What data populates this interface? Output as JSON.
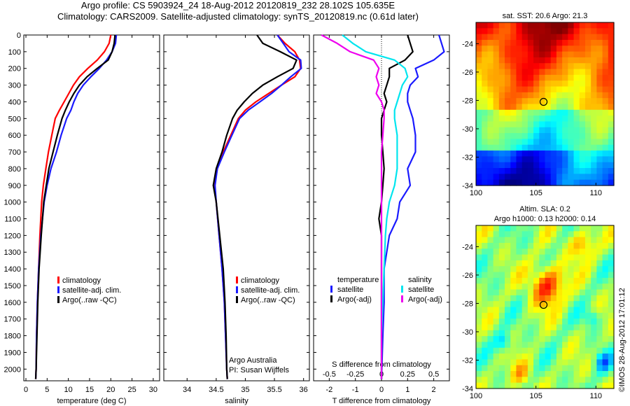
{
  "header": {
    "line1": "Argo profile: CS 5903924_24 18-Aug-2012 20120819_232 28.102S 105.635E",
    "line2": "Climatology: CARS2009. Satellite-adjusted climatology: synTS_20120819.nc (0.61d later)"
  },
  "credit": "©IMOS 28-Aug-2012 17:01:12",
  "colors": {
    "climatology": "#ff0000",
    "satellite": "#1a1aff",
    "argo": "#000000",
    "sal_satellite": "#00e5ee",
    "sal_argo": "#ee00ee"
  },
  "chart_data": [
    {
      "type": "line",
      "panel": "temperature",
      "xlabel": "temperature (deg C)",
      "ylabel": "",
      "xlim": [
        -0.5,
        31.5
      ],
      "ylim": [
        2070,
        0
      ],
      "xticks": [
        "0",
        "5",
        "10",
        "15",
        "20",
        "25",
        "30"
      ],
      "xtick_values": [
        0,
        5,
        10,
        15,
        20,
        25,
        30
      ],
      "yticks": [
        "0",
        "100",
        "200",
        "300",
        "400",
        "500",
        "600",
        "700",
        "800",
        "900",
        "1000",
        "1100",
        "1200",
        "1300",
        "1400",
        "1500",
        "1600",
        "1700",
        "1800",
        "1900",
        "2000"
      ],
      "legend": [
        "climatology",
        "satellite-adj. clim.",
        "Argo(..raw -QC)"
      ],
      "legend_position": "lower-middle",
      "series": [
        {
          "name": "climatology",
          "color_key": "climatology",
          "x": [
            20.0,
            19.6,
            18.5,
            16.8,
            14.6,
            12.6,
            11.2,
            10.1,
            9.0,
            7.9,
            6.9,
            6.1,
            5.3,
            4.7,
            4.1,
            3.7,
            3.3,
            3.0,
            2.7,
            2.5,
            2.4,
            2.3
          ],
          "y": [
            0,
            50,
            100,
            150,
            200,
            250,
            300,
            350,
            400,
            450,
            500,
            600,
            700,
            800,
            900,
            1000,
            1200,
            1400,
            1600,
            1800,
            2000,
            2060
          ]
        },
        {
          "name": "satellite-adj. clim.",
          "color_key": "satellite",
          "x": [
            21.3,
            21.1,
            20.3,
            19.0,
            17.3,
            15.3,
            13.5,
            12.2,
            11.3,
            10.6,
            9.6,
            8.3,
            7.2,
            5.9,
            5.0,
            4.3,
            3.5,
            3.0,
            2.7,
            2.5,
            2.4,
            2.3
          ],
          "y": [
            0,
            50,
            100,
            150,
            200,
            250,
            300,
            350,
            400,
            450,
            500,
            600,
            700,
            800,
            900,
            1000,
            1200,
            1400,
            1600,
            1800,
            2000,
            2060
          ]
        },
        {
          "name": "Argo(..raw -QC)",
          "color_key": "argo",
          "x": [
            21.0,
            20.8,
            20.3,
            19.4,
            16.8,
            14.4,
            12.6,
            11.3,
            10.2,
            9.3,
            8.5,
            7.4,
            6.4,
            5.4,
            4.8,
            4.2,
            3.6,
            3.1,
            2.8,
            2.6,
            2.4,
            2.3
          ],
          "y": [
            0,
            50,
            100,
            150,
            200,
            250,
            300,
            350,
            400,
            450,
            500,
            600,
            700,
            800,
            900,
            1000,
            1200,
            1400,
            1600,
            1800,
            2000,
            2060
          ]
        }
      ]
    },
    {
      "type": "line",
      "panel": "salinity",
      "xlabel": "salinity",
      "ylabel": "",
      "xlim": [
        33.6,
        36.1
      ],
      "ylim": [
        2070,
        0
      ],
      "xticks": [
        "34",
        "34.5",
        "35",
        "35.5",
        "36"
      ],
      "xtick_values": [
        34,
        34.5,
        35,
        35.5,
        36
      ],
      "legend": [
        "climatology",
        "satellite-adj. clim.",
        "Argo(..raw -QC)"
      ],
      "legend_position": "lower-middle",
      "annotations": [
        "Argo Australia",
        "PI: Susan Wijffels"
      ],
      "series": [
        {
          "name": "climatology",
          "color_key": "climatology",
          "x": [
            35.55,
            35.68,
            35.85,
            35.93,
            35.95,
            35.85,
            35.62,
            35.4,
            35.18,
            35.0,
            34.88,
            34.75,
            34.62,
            34.52,
            34.47,
            34.5,
            34.55,
            34.6,
            34.64,
            34.66,
            34.68,
            34.69
          ],
          "y": [
            0,
            50,
            100,
            150,
            200,
            250,
            300,
            350,
            400,
            450,
            500,
            600,
            700,
            800,
            900,
            1000,
            1200,
            1400,
            1600,
            1800,
            2000,
            2060
          ]
        },
        {
          "name": "satellite-adj. clim.",
          "color_key": "satellite",
          "x": [
            35.55,
            35.65,
            35.75,
            35.95,
            35.96,
            35.78,
            35.62,
            35.45,
            35.25,
            35.05,
            34.9,
            34.77,
            34.64,
            34.52,
            34.48,
            34.5,
            34.55,
            34.6,
            34.64,
            34.66,
            34.68,
            34.69
          ],
          "y": [
            0,
            50,
            100,
            150,
            200,
            250,
            300,
            350,
            400,
            450,
            500,
            600,
            700,
            800,
            900,
            1000,
            1200,
            1400,
            1600,
            1800,
            2000,
            2060
          ]
        },
        {
          "name": "Argo(..raw -QC)",
          "color_key": "argo",
          "x": [
            35.2,
            35.3,
            35.6,
            35.88,
            35.82,
            35.55,
            35.3,
            35.12,
            34.98,
            34.86,
            34.78,
            34.68,
            34.6,
            34.5,
            34.45,
            34.5,
            34.56,
            34.62,
            34.65,
            34.67,
            34.68,
            34.69
          ],
          "y": [
            0,
            50,
            100,
            150,
            200,
            250,
            300,
            350,
            400,
            450,
            500,
            600,
            700,
            800,
            900,
            1000,
            1200,
            1400,
            1600,
            1800,
            2000,
            2060
          ]
        }
      ]
    },
    {
      "type": "line",
      "panel": "difference",
      "xlabel": "T difference from climatology",
      "xlabel_top": "S difference from climatology",
      "xlim": [
        -2.6,
        2.6
      ],
      "ylim": [
        2070,
        0
      ],
      "xticks": [
        "-2",
        "-1",
        "0",
        "1",
        "2"
      ],
      "xtick_values": [
        -2,
        -1,
        0,
        1,
        2
      ],
      "s_ticks": [
        "-0.5",
        "-0.25",
        "0",
        "0.25",
        "0.5"
      ],
      "s_tick_values": [
        -0.5,
        -0.25,
        0,
        0.25,
        0.5
      ],
      "legend": [
        "temperature",
        "satellite",
        "Argo(-adj)",
        "salinity",
        "satellite",
        "Argo(-adj)"
      ],
      "series": [
        {
          "name": "satellite",
          "group": "temperature",
          "color_key": "satellite",
          "x": [
            2.2,
            2.3,
            2.4,
            2.0,
            1.3,
            1.4,
            1.1,
            1.0,
            1.0,
            1.1,
            1.2,
            1.3,
            1.3,
            1.0,
            1.1,
            0.7,
            0.6,
            0.3,
            0.1,
            0.1,
            0.05,
            0.0
          ],
          "y": [
            0,
            50,
            100,
            150,
            200,
            250,
            300,
            350,
            400,
            450,
            500,
            600,
            700,
            800,
            900,
            1000,
            1100,
            1200,
            1400,
            1600,
            1800,
            2060
          ]
        },
        {
          "name": "Argo(-adj)",
          "group": "temperature",
          "color_key": "argo",
          "x": [
            1.0,
            1.1,
            1.2,
            0.9,
            0.3,
            0.3,
            0.2,
            0.1,
            0.2,
            0.1,
            0.0,
            0.0,
            0.05,
            0.1,
            0.05,
            0.0,
            -0.1,
            0.0,
            0.0,
            0.0,
            0.0,
            0.0
          ],
          "y": [
            0,
            50,
            100,
            150,
            200,
            250,
            300,
            350,
            400,
            450,
            500,
            600,
            700,
            800,
            900,
            1000,
            1100,
            1200,
            1400,
            1600,
            1800,
            2060
          ]
        },
        {
          "name": "satellite",
          "group": "salinity",
          "color_key": "sal_satellite",
          "x": [
            -1.5,
            -1.1,
            -0.6,
            0.5,
            0.9,
            1.0,
            0.8,
            0.7,
            0.6,
            0.5,
            0.5,
            0.6,
            0.6,
            0.6,
            0.5,
            0.3,
            0.2,
            0.15,
            0.1,
            0.05,
            0.0,
            0.0
          ],
          "y": [
            0,
            50,
            100,
            150,
            200,
            250,
            300,
            350,
            400,
            450,
            500,
            600,
            700,
            800,
            900,
            1000,
            1100,
            1200,
            1400,
            1600,
            1800,
            2060
          ]
        },
        {
          "name": "Argo(-adj)",
          "group": "salinity",
          "color_key": "sal_argo",
          "x": [
            -2.3,
            -1.7,
            -1.2,
            -0.3,
            -0.1,
            -0.2,
            -0.1,
            -0.2,
            0.0,
            0.1,
            0.1,
            0.05,
            0.0,
            0.0,
            0.0,
            0.0,
            0.0,
            0.0,
            0.0,
            0.0,
            0.0,
            0.0
          ],
          "y": [
            0,
            50,
            100,
            150,
            200,
            250,
            300,
            350,
            400,
            450,
            500,
            600,
            700,
            800,
            900,
            1000,
            1100,
            1200,
            1400,
            1600,
            1800,
            2060
          ]
        }
      ]
    },
    {
      "type": "heatmap",
      "panel": "sst_map",
      "title": "sat. SST: 20.6  Argo: 21.3",
      "xlim": [
        100,
        111.5
      ],
      "ylim": [
        -34,
        -22.5
      ],
      "xticks": [
        "100",
        "105",
        "110"
      ],
      "xtick_values": [
        100,
        105,
        110
      ],
      "yticks": [
        "-24",
        "-26",
        "-28",
        "-30",
        "-32",
        "-34"
      ],
      "ytick_values": [
        -24,
        -26,
        -28,
        -30,
        -32,
        -34
      ],
      "marker": {
        "lon": 105.635,
        "lat": -28.102
      }
    },
    {
      "type": "heatmap",
      "panel": "sla_map",
      "title": "Altim. SLA: 0.2",
      "subtitle": "Argo h1000: 0.13 h2000: 0.14",
      "xlim": [
        100,
        111.5
      ],
      "ylim": [
        -34,
        -22.5
      ],
      "xticks": [
        "100",
        "105",
        "110"
      ],
      "xtick_values": [
        100,
        105,
        110
      ],
      "yticks": [
        "-24",
        "-26",
        "-28",
        "-30",
        "-32",
        "-34"
      ],
      "ytick_values": [
        -24,
        -26,
        -28,
        -30,
        -32,
        -34
      ],
      "marker": {
        "lon": 105.635,
        "lat": -28.102
      }
    }
  ]
}
